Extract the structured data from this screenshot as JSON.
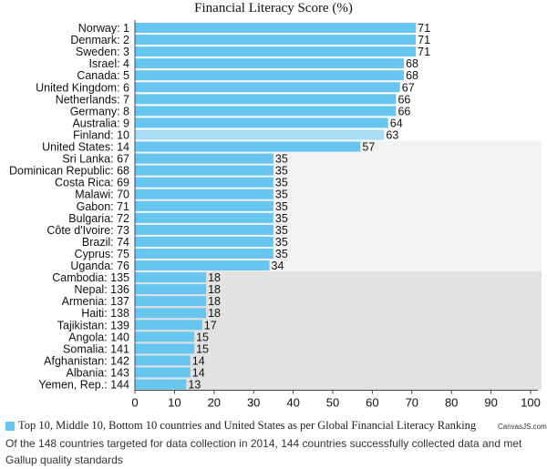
{
  "chart_data": {
    "type": "bar",
    "orientation": "horizontal",
    "title": "Financial Literacy Score (%)",
    "xlim": [
      0,
      100
    ],
    "xticks": [
      0,
      10,
      20,
      30,
      40,
      50,
      60,
      70,
      80,
      90,
      100
    ],
    "categories": [
      "Norway: 1",
      "Denmark: 2",
      "Sweden: 3",
      "Israel: 4",
      "Canada: 5",
      "United Kingdom: 6",
      "Netherlands: 7",
      "Germany: 8",
      "Australia: 9",
      "Finland: 10",
      "United States: 14",
      "Sri Lanka: 67",
      "Dominican Republic: 68",
      "Costa Rica: 69",
      "Malawi: 70",
      "Gabon: 71",
      "Bulgaria: 72",
      "Côte d'Ivoire: 73",
      "Brazil: 74",
      "Cyprus: 75",
      "Uganda: 76",
      "Cambodia: 135",
      "Nepal: 136",
      "Armenia: 137",
      "Haiti: 138",
      "Tajikistan: 139",
      "Angola: 140",
      "Somalia: 141",
      "Afghanistan: 142",
      "Albania: 143",
      "Yemen, Rep.: 144"
    ],
    "series": [
      {
        "name": "Top 10, Middle 10, Bottom 10 countries and United States as per Global Financial Literacy Ranking",
        "values": [
          71,
          71,
          71,
          68,
          68,
          67,
          66,
          66,
          64,
          63,
          57,
          35,
          35,
          35,
          35,
          35,
          35,
          35,
          35,
          35,
          34,
          18,
          18,
          18,
          18,
          17,
          15,
          15,
          14,
          14,
          13
        ],
        "color": "#66c6f0",
        "highlight_index": 9,
        "highlight_color": "#a8dcf5"
      }
    ],
    "stripes": [
      {
        "from_index": 10,
        "to_index": 20,
        "color": "#f2f2f2"
      },
      {
        "from_index": 21,
        "to_index": 30,
        "color": "#e2e2e2"
      }
    ],
    "grid": false,
    "legend_position": "bottom-left"
  },
  "credit": "CanvasJS.com",
  "subtitle": "Of the 148 countries targeted for data collection in 2014, 144 countries successfully collected data and met Gallup quality standards"
}
